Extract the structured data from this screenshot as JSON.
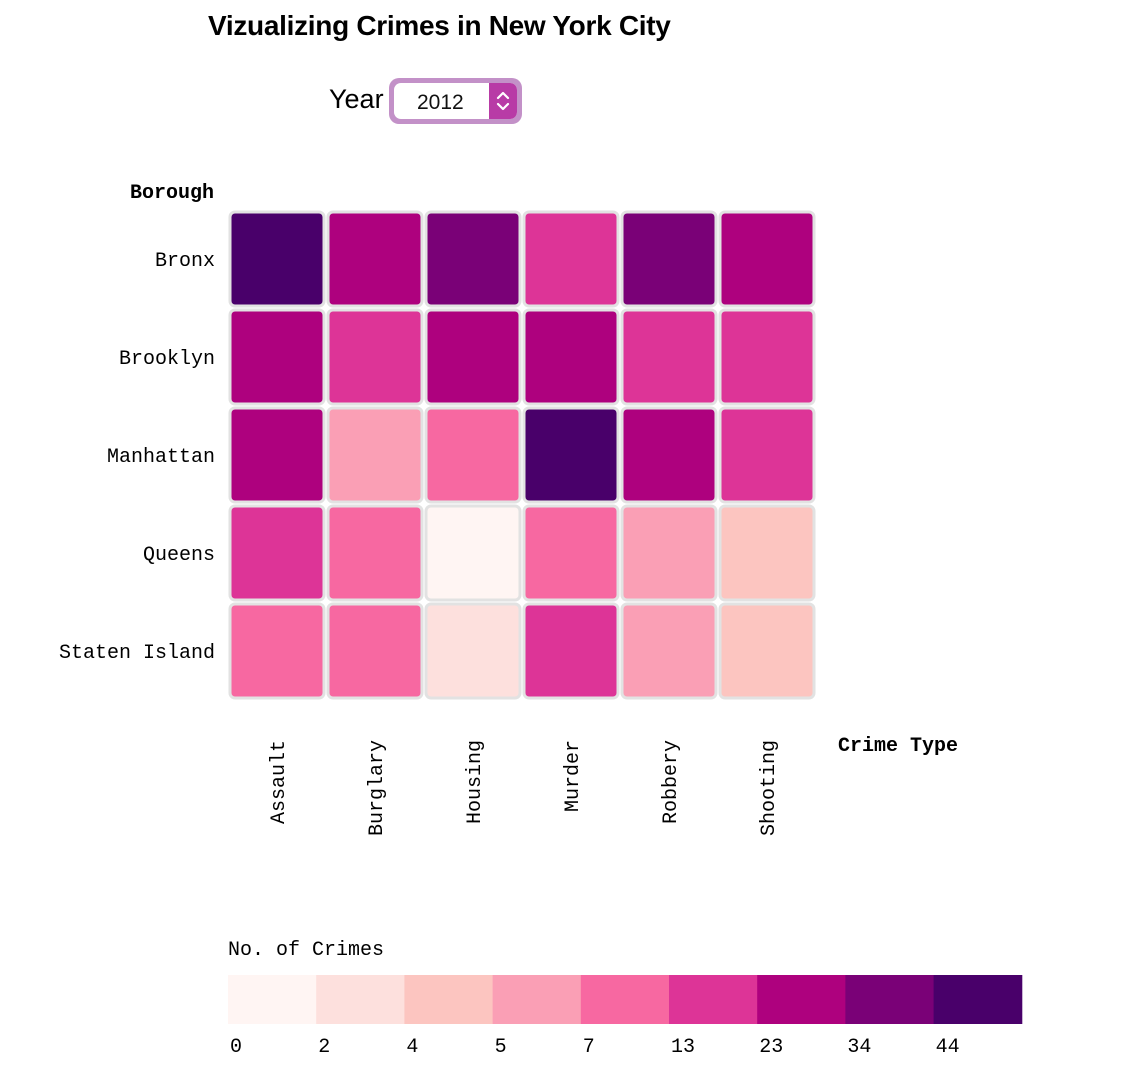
{
  "page": {
    "title": "Vizualizing Crimes in New York City"
  },
  "controls": {
    "year_label": "Year",
    "year_value": "2012"
  },
  "chart_data": {
    "type": "heatmap",
    "title": "Vizualizing Crimes in New York City",
    "ylabel": "Borough",
    "xlabel": "Crime Type",
    "rows": [
      "Bronx",
      "Brooklyn",
      "Manhattan",
      "Queens",
      "Staten Island"
    ],
    "columns": [
      "Assault",
      "Burglary",
      "Housing",
      "Murder",
      "Robbery",
      "Shooting"
    ],
    "bin_index": [
      [
        8,
        6,
        7,
        5,
        7,
        6
      ],
      [
        6,
        5,
        6,
        6,
        5,
        5
      ],
      [
        6,
        3,
        4,
        8,
        6,
        5
      ],
      [
        5,
        4,
        0,
        4,
        3,
        2
      ],
      [
        4,
        4,
        1,
        5,
        3,
        2
      ]
    ],
    "legend": {
      "title": "No. of Crimes",
      "thresholds": [
        "0",
        "2",
        "4",
        "5",
        "7",
        "13",
        "23",
        "34",
        "44"
      ],
      "colors": [
        "#fff5f3",
        "#fde0dd",
        "#fcc5c0",
        "#fa9fb5",
        "#f768a1",
        "#dd3497",
        "#ae017e",
        "#7a0177",
        "#49006a"
      ]
    },
    "cell_border_color": "#e2e2e2"
  }
}
